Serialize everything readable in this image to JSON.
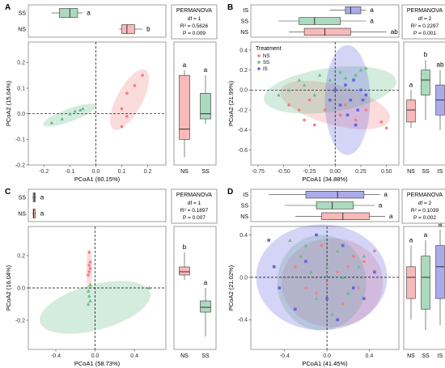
{
  "chart_data": [
    {
      "panel": "A",
      "type": "scatter",
      "xlabel": "PCoA1 (60.15%)",
      "ylabel": "PCoA2 (15.04%)",
      "xlim": [
        -0.26,
        0.27
      ],
      "ylim": [
        -0.2,
        0.28
      ],
      "xticks": [
        -0.2,
        -0.1,
        0.0,
        0.1,
        0.2
      ],
      "xtick_labels": [
        "-0.2",
        "-0.1",
        "0.0",
        "0.1",
        "0.2"
      ],
      "yticks": [
        -0.2,
        -0.1,
        0.0,
        0.1,
        0.2
      ],
      "ytick_labels": [
        "-0.2",
        "-0.1",
        "0.0",
        "0.1",
        "0.2"
      ],
      "groups": [
        "NS",
        "SS"
      ],
      "series": [
        {
          "name": "NS",
          "color": "#f08080",
          "ellipse": {
            "cx": 0.13,
            "cy": 0.055,
            "rx": 0.13,
            "ry": 0.05,
            "angle": 62
          },
          "points": [
            [
              0.1,
              0.02
            ],
            [
              0.12,
              0.08
            ],
            [
              0.15,
              0.11
            ],
            [
              0.18,
              0.15
            ],
            [
              0.1,
              -0.05
            ],
            [
              0.12,
              -0.01
            ]
          ]
        },
        {
          "name": "SS",
          "color": "#66bb88",
          "ellipse": {
            "cx": -0.1,
            "cy": -0.005,
            "rx": 0.11,
            "ry": 0.025,
            "angle": 20
          },
          "points": [
            [
              -0.17,
              -0.035
            ],
            [
              -0.13,
              -0.02
            ],
            [
              -0.1,
              0.0
            ],
            [
              -0.08,
              0.01
            ],
            [
              -0.06,
              0.015
            ],
            [
              -0.05,
              0.02
            ]
          ]
        }
      ],
      "top_boxplot": {
        "labels": [
          "SS",
          "NS"
        ],
        "letters": [
          "a",
          "b"
        ],
        "xlim": [
          -0.26,
          0.27
        ],
        "boxes": [
          {
            "group": "SS",
            "min": -0.17,
            "q1": -0.14,
            "median": -0.1,
            "q3": -0.07,
            "max": -0.05
          },
          {
            "group": "NS",
            "min": 0.09,
            "q1": 0.1,
            "median": 0.12,
            "q3": 0.15,
            "max": 0.18
          }
        ]
      },
      "right_boxplot": {
        "labels": [
          "NS",
          "SS"
        ],
        "letters": [
          "a",
          "a"
        ],
        "boxes": [
          {
            "group": "NS",
            "min": -0.17,
            "q1": -0.1,
            "median": -0.06,
            "q3": 0.15,
            "max": 0.17
          },
          {
            "group": "SS",
            "min": -0.04,
            "q1": -0.02,
            "median": 0.0,
            "q3": 0.08,
            "max": 0.15
          }
        ]
      },
      "permanova": {
        "title": "PERMANOVA",
        "df": "df = 1",
        "r2": "R² = 0.5626",
        "p": "P = 0.009"
      }
    },
    {
      "panel": "B",
      "type": "scatter",
      "xlabel": "PCoA1 (34.88%)",
      "ylabel": "PCoA2 (21.99%)",
      "xlim": [
        -0.82,
        0.62
      ],
      "ylim": [
        -0.75,
        0.48
      ],
      "xticks": [
        -0.75,
        -0.5,
        -0.25,
        0.0,
        0.25,
        0.5
      ],
      "xtick_labels": [
        "-0.75",
        "-0.50",
        "-0.25",
        "0.00",
        "0.25",
        "0.50"
      ],
      "yticks": [
        -0.6,
        -0.4,
        -0.2,
        0.0,
        0.2,
        0.4
      ],
      "ytick_labels": [
        "-0.6",
        "-0.4",
        "-0.2",
        "0.0",
        "0.2",
        "0.4"
      ],
      "legend_title": "Treatment",
      "groups": [
        "NS",
        "SS",
        "IS"
      ],
      "series": [
        {
          "name": "NS",
          "color": "#f08080",
          "ellipse": {
            "cx": 0.0,
            "cy": -0.15,
            "rx": 0.55,
            "ry": 0.2,
            "angle": -15
          },
          "points": [
            [
              -0.35,
              -0.2
            ],
            [
              -0.3,
              -0.3
            ],
            [
              -0.25,
              -0.1
            ],
            [
              -0.2,
              -0.35
            ],
            [
              -0.1,
              -0.2
            ],
            [
              0.05,
              -0.25
            ],
            [
              0.1,
              -0.15
            ],
            [
              0.2,
              -0.3
            ],
            [
              0.3,
              -0.2
            ],
            [
              0.45,
              -0.32
            ],
            [
              0.5,
              -0.38
            ],
            [
              -0.45,
              -0.15
            ]
          ]
        },
        {
          "name": "SS",
          "color": "#66bb88",
          "ellipse": {
            "cx": -0.05,
            "cy": 0.0,
            "rx": 0.65,
            "ry": 0.22,
            "angle": 8
          },
          "points": [
            [
              -0.55,
              -0.05
            ],
            [
              -0.45,
              0.0
            ],
            [
              -0.35,
              0.1
            ],
            [
              -0.3,
              0.05
            ],
            [
              -0.2,
              -0.05
            ],
            [
              -0.15,
              0.15
            ],
            [
              -0.05,
              0.1
            ],
            [
              0.05,
              0.18
            ],
            [
              0.1,
              0.12
            ],
            [
              0.2,
              0.15
            ],
            [
              0.25,
              0.2
            ],
            [
              0.3,
              0.22
            ]
          ]
        },
        {
          "name": "IS",
          "color": "#6666dd",
          "ellipse": {
            "cx": 0.12,
            "cy": -0.1,
            "rx": 0.22,
            "ry": 0.55,
            "angle": 0
          },
          "points": [
            [
              -0.05,
              -0.1
            ],
            [
              0.0,
              0.0
            ],
            [
              0.05,
              -0.15
            ],
            [
              0.1,
              0.05
            ],
            [
              0.12,
              -0.25
            ],
            [
              0.15,
              -0.1
            ],
            [
              0.2,
              -0.35
            ],
            [
              0.22,
              -0.2
            ],
            [
              0.25,
              0.0
            ],
            [
              0.27,
              -0.1
            ],
            [
              0.3,
              -0.05
            ],
            [
              0.18,
              0.1
            ]
          ]
        }
      ],
      "top_boxplot": {
        "labels": [
          "IS",
          "SS",
          "NS"
        ],
        "letters": [
          "a",
          "a",
          "ab"
        ],
        "xlim": [
          -0.82,
          0.62
        ],
        "boxes": [
          {
            "group": "IS",
            "min": -0.05,
            "q1": 0.1,
            "median": 0.15,
            "q3": 0.25,
            "max": 0.3
          },
          {
            "group": "SS",
            "min": -0.55,
            "q1": -0.35,
            "median": -0.2,
            "q3": 0.05,
            "max": 0.3
          },
          {
            "group": "NS",
            "min": -0.45,
            "q1": -0.3,
            "median": -0.1,
            "q3": 0.15,
            "max": 0.5
          }
        ]
      },
      "right_boxplot": {
        "labels": [
          "NS",
          "SS",
          "IS"
        ],
        "letters": [
          "a",
          "b",
          "ab"
        ],
        "boxes": [
          {
            "group": "NS",
            "min": -0.38,
            "q1": -0.32,
            "median": -0.2,
            "q3": -0.1,
            "max": 0.0
          },
          {
            "group": "SS",
            "min": -0.3,
            "q1": -0.05,
            "median": 0.1,
            "q3": 0.2,
            "max": 0.3
          },
          {
            "group": "IS",
            "min": -0.4,
            "q1": -0.25,
            "median": -0.1,
            "q3": 0.05,
            "max": 0.2
          }
        ]
      },
      "permanova": {
        "title": "PERMANOVA",
        "df": "df = 2",
        "r2": "R² = 0.2297",
        "p": "P = 0.001"
      }
    },
    {
      "panel": "C",
      "type": "scatter",
      "xlabel": "PCoA1 (58.73%)",
      "ylabel": "PCoA2 (16.04%)",
      "xlim": [
        -0.68,
        0.72
      ],
      "ylim": [
        -0.38,
        0.38
      ],
      "xticks": [
        -0.4,
        0.0,
        0.4
      ],
      "xtick_labels": [
        "-0.4",
        "0.0",
        "0.4"
      ],
      "yticks": [
        -0.2,
        0.0,
        0.2
      ],
      "ytick_labels": [
        "-0.2",
        "0.0",
        "0.2"
      ],
      "groups": [
        "NS",
        "SS"
      ],
      "series": [
        {
          "name": "NS",
          "color": "#f08080",
          "ellipse": {
            "cx": -0.06,
            "cy": 0.11,
            "rx": 0.03,
            "ry": 0.13,
            "angle": 0
          },
          "points": [
            [
              -0.07,
              0.08
            ],
            [
              -0.06,
              0.1
            ],
            [
              -0.05,
              0.12
            ],
            [
              -0.06,
              0.14
            ],
            [
              -0.05,
              0.16
            ],
            [
              -0.06,
              0.22
            ]
          ]
        },
        {
          "name": "SS",
          "color": "#66bb88",
          "ellipse": {
            "cx": 0.0,
            "cy": -0.12,
            "rx": 0.58,
            "ry": 0.14,
            "angle": 15
          },
          "points": [
            [
              -0.07,
              -0.02
            ],
            [
              -0.06,
              -0.05
            ],
            [
              -0.05,
              -0.08
            ],
            [
              -0.07,
              -0.1
            ],
            [
              -0.05,
              0.02
            ],
            [
              0.55,
              0.0
            ]
          ]
        }
      ],
      "top_boxplot": {
        "labels": [
          "SS",
          "NS"
        ],
        "letters": [
          "a",
          "a"
        ],
        "xlim": [
          -0.68,
          0.72
        ],
        "boxes": [
          {
            "group": "SS",
            "min": -0.64,
            "q1": -0.63,
            "median": -0.62,
            "q3": -0.61,
            "max": -0.6
          },
          {
            "group": "NS",
            "min": -0.64,
            "q1": -0.63,
            "median": -0.625,
            "q3": -0.61,
            "max": -0.6
          }
        ]
      },
      "right_boxplot": {
        "labels": [
          "NS",
          "SS"
        ],
        "letters": [
          "b",
          "a"
        ],
        "boxes": [
          {
            "group": "NS",
            "min": 0.05,
            "q1": 0.08,
            "median": 0.1,
            "q3": 0.13,
            "max": 0.22
          },
          {
            "group": "SS",
            "min": -0.3,
            "q1": -0.15,
            "median": -0.12,
            "q3": -0.08,
            "max": 0.0
          }
        ]
      },
      "permanova": {
        "title": "PERMANOVA",
        "df": "df = 1",
        "r2": "R² = 0.1897",
        "p": "P = 0.007"
      }
    },
    {
      "panel": "D",
      "type": "scatter",
      "xlabel": "PCoA1 (41.45%)",
      "ylabel": "PCoA2 (21.02%)",
      "xlim": [
        -0.72,
        0.68
      ],
      "ylim": [
        -0.68,
        0.48
      ],
      "xticks": [
        -0.4,
        0.0,
        0.4
      ],
      "xtick_labels": [
        "-0.4",
        "0.0",
        "0.4"
      ],
      "yticks": [
        -0.4,
        0.0,
        0.4
      ],
      "ytick_labels": [
        "-0.4",
        "0.0",
        "0.4"
      ],
      "groups": [
        "NS",
        "SS",
        "IS"
      ],
      "series": [
        {
          "name": "NS",
          "color": "#f08080",
          "ellipse": {
            "cx": 0.05,
            "cy": -0.05,
            "rx": 0.48,
            "ry": 0.42,
            "angle": 0
          },
          "points": [
            [
              -0.3,
              0.1
            ],
            [
              -0.2,
              -0.1
            ],
            [
              -0.1,
              -0.15
            ],
            [
              0.0,
              -0.05
            ],
            [
              0.1,
              0.05
            ],
            [
              0.15,
              -0.25
            ],
            [
              0.2,
              0.1
            ],
            [
              0.25,
              0.2
            ],
            [
              0.3,
              -0.1
            ],
            [
              0.35,
              0.15
            ],
            [
              0.45,
              0.25
            ],
            [
              -0.05,
              0.3
            ]
          ]
        },
        {
          "name": "SS",
          "color": "#66bb88",
          "ellipse": {
            "cx": -0.05,
            "cy": -0.05,
            "rx": 0.42,
            "ry": 0.45,
            "angle": 0
          },
          "points": [
            [
              -0.35,
              0.35
            ],
            [
              -0.25,
              0.2
            ],
            [
              -0.15,
              0.05
            ],
            [
              -0.1,
              -0.2
            ],
            [
              0.0,
              0.1
            ],
            [
              0.05,
              -0.35
            ],
            [
              0.1,
              0.25
            ],
            [
              0.15,
              0.0
            ],
            [
              0.2,
              -0.15
            ],
            [
              0.3,
              0.1
            ],
            [
              0.35,
              0.2
            ],
            [
              -0.2,
              0.3
            ]
          ]
        },
        {
          "name": "IS",
          "color": "#6666dd",
          "ellipse": {
            "cx": -0.05,
            "cy": 0.0,
            "rx": 0.62,
            "ry": 0.5,
            "angle": 0
          },
          "points": [
            [
              -0.55,
              0.35
            ],
            [
              -0.5,
              0.1
            ],
            [
              -0.45,
              -0.1
            ],
            [
              -0.3,
              -0.3
            ],
            [
              -0.2,
              0.15
            ],
            [
              -0.1,
              0.4
            ],
            [
              0.0,
              -0.2
            ],
            [
              0.1,
              -0.4
            ],
            [
              0.15,
              0.3
            ],
            [
              0.25,
              -0.1
            ],
            [
              0.35,
              -0.2
            ],
            [
              0.45,
              0.05
            ]
          ]
        }
      ],
      "top_boxplot": {
        "labels": [
          "IS",
          "SS",
          "NS"
        ],
        "letters": [
          "a",
          "a",
          "a"
        ],
        "xlim": [
          -0.72,
          0.68
        ],
        "boxes": [
          {
            "group": "IS",
            "min": -0.55,
            "q1": -0.2,
            "median": 0.1,
            "q3": 0.35,
            "max": 0.5
          },
          {
            "group": "SS",
            "min": -0.4,
            "q1": -0.1,
            "median": 0.05,
            "q3": 0.25,
            "max": 0.45
          },
          {
            "group": "NS",
            "min": -0.3,
            "q1": -0.05,
            "median": 0.15,
            "q3": 0.4,
            "max": 0.55
          }
        ]
      },
      "right_boxplot": {
        "labels": [
          "NS",
          "SS",
          "IS"
        ],
        "letters": [
          "a",
          "a",
          "a"
        ],
        "boxes": [
          {
            "group": "NS",
            "min": -0.4,
            "q1": -0.2,
            "median": 0.0,
            "q3": 0.1,
            "max": 0.3
          },
          {
            "group": "SS",
            "min": -0.5,
            "q1": -0.3,
            "median": 0.0,
            "q3": 0.2,
            "max": 0.35
          },
          {
            "group": "IS",
            "min": -0.45,
            "q1": -0.2,
            "median": 0.1,
            "q3": 0.3,
            "max": 0.45
          }
        ]
      },
      "permanova": {
        "title": "PERMANOVA",
        "df": "df = 2",
        "r2": "R² = 0.1039",
        "p": "P = 0.002"
      }
    }
  ],
  "colors": {
    "NS": "#f08080",
    "SS": "#66bb88",
    "IS": "#6666dd"
  }
}
